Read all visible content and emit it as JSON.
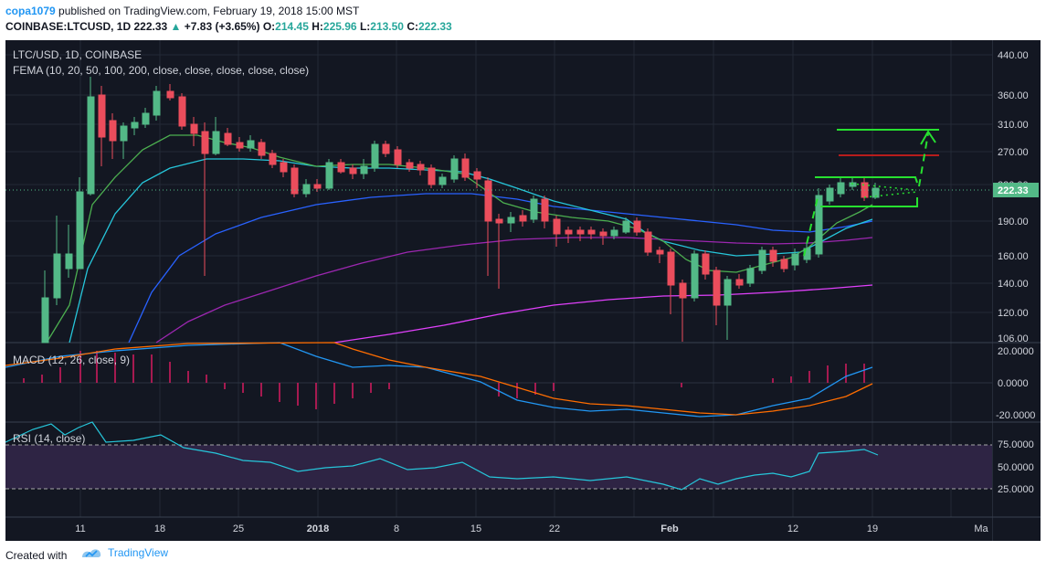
{
  "header": {
    "user": "copa1079",
    "published_text": " published on TradingView.com, February 19, 2018 15:00 MST",
    "symbol": "COINBASE:LTCUSD, 1D",
    "price": "222.33",
    "change": "+7.83 (+3.65%)",
    "open_label": "O:",
    "open": "214.45",
    "high_label": "H:",
    "high": "225.96",
    "low_label": "L:",
    "low": "213.50",
    "close_label": "C:",
    "close": "222.33"
  },
  "chart": {
    "pair_title": "LTC/USD, 1D, COINBASE",
    "indicator_title": "FEMA (10, 20, 50, 100, 200, close, close, close, close, close)",
    "price_axis": [
      "440.00",
      "360.00",
      "310.00",
      "270.00",
      "230.00",
      "190.00",
      "160.00",
      "140.00",
      "120.00",
      "106.00"
    ],
    "last_price_tag": "222.33",
    "macd_title": "MACD (12, 26, close, 9)",
    "macd_axis": [
      "20.0000",
      "0.0000",
      "-20.0000"
    ],
    "rsi_title": "RSI (14, close)",
    "rsi_axis": [
      "75.0000",
      "50.0000",
      "25.0000"
    ],
    "time_axis": [
      "11",
      "18",
      "25",
      "2018",
      "8",
      "15",
      "22",
      "Feb",
      "12",
      "19",
      "Ma"
    ]
  },
  "chart_data": {
    "type": "candlestick",
    "title": "LTC/USD, 1D, COINBASE",
    "candles_close_approx": [
      116,
      160,
      195,
      350,
      320,
      300,
      300,
      330,
      350,
      360,
      340,
      310,
      300,
      290,
      280,
      275,
      285,
      290,
      275,
      255,
      235,
      225,
      240,
      230,
      245,
      245,
      240,
      270,
      255,
      255,
      250,
      240,
      230,
      240,
      260,
      250,
      215,
      195,
      200,
      200,
      195,
      205,
      175,
      175,
      178,
      178,
      178,
      180,
      182,
      190,
      175,
      160,
      130,
      155,
      160,
      150,
      125,
      140,
      150,
      155,
      165,
      160,
      155,
      162,
      200,
      215,
      220,
      225,
      213,
      222
    ],
    "ylim": [
      106,
      440
    ],
    "macd_range": [
      -20,
      20
    ],
    "rsi_levels": [
      25,
      50,
      75
    ],
    "grid": true
  },
  "footer": {
    "created_with": "Created with",
    "brand": "TradingView"
  },
  "colors": {
    "background": "#131722",
    "up": "#53b987",
    "down": "#eb4d5c",
    "fema10": "#4caf50",
    "fema20": "#26c6da",
    "fema50": "#2962ff",
    "fema100": "#9c27b0",
    "fema200": "#e040fb"
  }
}
